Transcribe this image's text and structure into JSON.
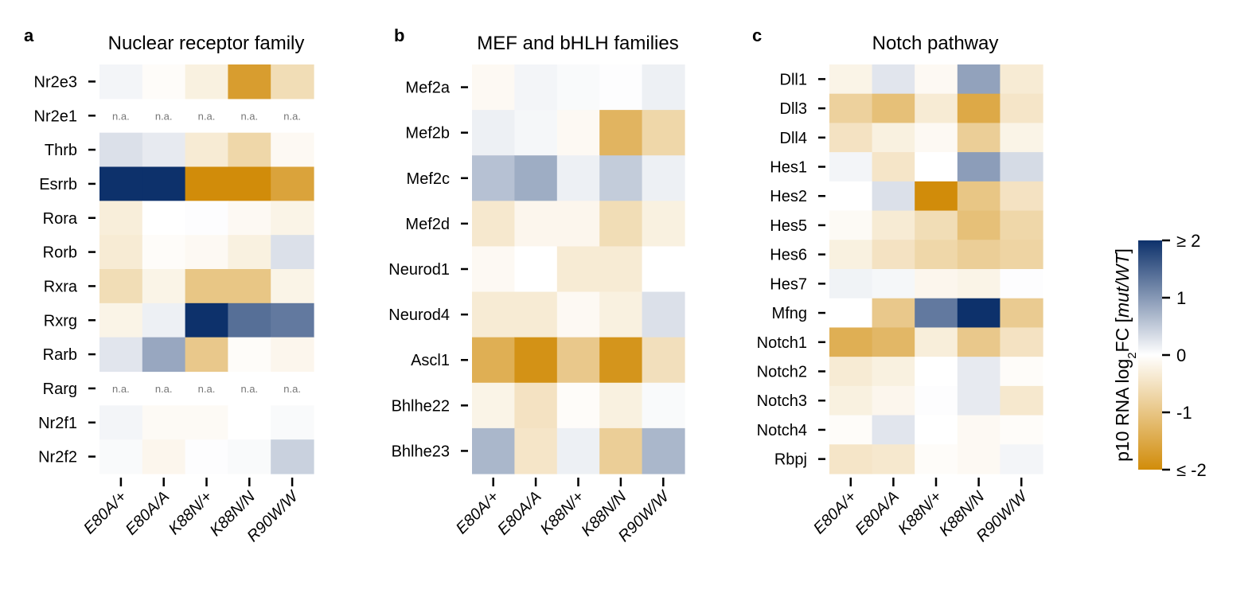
{
  "colorbar": {
    "label_parts": [
      "p10 RNA log",
      "2",
      "FC [",
      "mut/WT",
      "]"
    ],
    "ticks": [
      {
        "value": 2,
        "label": "≥ 2"
      },
      {
        "value": 1,
        "label": "1"
      },
      {
        "value": 0,
        "label": "0"
      },
      {
        "value": -1,
        "label": "-1"
      },
      {
        "value": -2,
        "label": "≤ -2"
      }
    ],
    "colors": {
      "neg": "#D18C0A",
      "mid": "#FFFFFF",
      "pos": "#0D316B"
    },
    "vmin": -2,
    "vmax": 2
  },
  "na_label": "n.a.",
  "chart_data": [
    {
      "type": "heatmap",
      "panel": "a",
      "title": "Nuclear receptor family",
      "rows": [
        "Nr2e3",
        "Nr2e1",
        "Thrb",
        "Esrrb",
        "Rora",
        "Rorb",
        "Rxra",
        "Rxrg",
        "Rarb",
        "Rarg",
        "Nr2f1",
        "Nr2f2"
      ],
      "columns": [
        "E80A/+",
        "E80A/A",
        "K88N/+",
        "K88N/N",
        "R90W/W"
      ],
      "values": [
        [
          0.1,
          -0.05,
          -0.25,
          -1.7,
          -0.6
        ],
        [
          null,
          null,
          null,
          null,
          null
        ],
        [
          0.3,
          0.2,
          -0.35,
          -0.7,
          -0.1
        ],
        [
          2.0,
          2.0,
          -2.0,
          -2.0,
          -1.6
        ],
        [
          -0.3,
          0.0,
          0.02,
          -0.1,
          -0.2
        ],
        [
          -0.35,
          -0.05,
          -0.1,
          -0.25,
          0.3
        ],
        [
          -0.6,
          -0.2,
          -1.0,
          -1.0,
          -0.2
        ],
        [
          -0.2,
          0.15,
          2.0,
          1.4,
          1.3
        ],
        [
          0.25,
          0.85,
          -0.95,
          -0.05,
          -0.15
        ],
        [
          null,
          null,
          null,
          null,
          null
        ],
        [
          0.1,
          -0.08,
          -0.08,
          0.0,
          0.05
        ],
        [
          0.05,
          -0.15,
          0.02,
          0.05,
          0.45
        ]
      ]
    },
    {
      "type": "heatmap",
      "panel": "b",
      "title": "MEF and bHLH families",
      "rows": [
        "Mef2a",
        "Mef2b",
        "Mef2c",
        "Mef2d",
        "Neurod1",
        "Neurod4",
        "Ascl1",
        "Bhlhe22",
        "Bhlhe23"
      ],
      "columns": [
        "E80A/+",
        "E80A/A",
        "K88N/+",
        "K88N/N",
        "R90W/W"
      ],
      "values": [
        [
          -0.1,
          0.1,
          0.05,
          0.02,
          0.15
        ],
        [
          0.15,
          0.08,
          -0.1,
          -1.3,
          -0.7
        ],
        [
          0.6,
          0.8,
          0.15,
          0.5,
          0.15
        ],
        [
          -0.4,
          -0.15,
          -0.15,
          -0.6,
          -0.25
        ],
        [
          -0.1,
          0.0,
          -0.35,
          -0.35,
          0.0
        ],
        [
          -0.35,
          -0.35,
          -0.1,
          -0.25,
          0.3
        ],
        [
          -1.4,
          -1.9,
          -0.95,
          -1.85,
          -0.55
        ],
        [
          -0.2,
          -0.5,
          -0.05,
          -0.25,
          0.05
        ],
        [
          0.7,
          -0.45,
          0.15,
          -0.85,
          0.7
        ]
      ]
    },
    {
      "type": "heatmap",
      "panel": "c",
      "title": "Notch pathway",
      "rows": [
        "Dll1",
        "Dll3",
        "Dll4",
        "Hes1",
        "Hes2",
        "Hes5",
        "Hes6",
        "Hes7",
        "Mfng",
        "Notch1",
        "Notch2",
        "Notch3",
        "Notch4",
        "Rbpj"
      ],
      "columns": [
        "E80A/+",
        "E80A/A",
        "K88N/+",
        "K88N/N",
        "R90W/W"
      ],
      "values": [
        [
          -0.2,
          0.25,
          -0.1,
          0.9,
          -0.35
        ],
        [
          -0.8,
          -1.1,
          -0.35,
          -1.5,
          -0.45
        ],
        [
          -0.5,
          -0.25,
          -0.1,
          -0.85,
          -0.2
        ],
        [
          0.1,
          -0.45,
          0.0,
          0.95,
          0.35
        ],
        [
          0.0,
          0.3,
          -2.0,
          -1.0,
          -0.5
        ],
        [
          -0.08,
          -0.35,
          -0.6,
          -1.1,
          -0.7
        ],
        [
          -0.25,
          -0.5,
          -0.7,
          -0.85,
          -0.75
        ],
        [
          0.12,
          0.08,
          -0.15,
          -0.2,
          0.02
        ],
        [
          0.0,
          -0.95,
          1.3,
          2.0,
          -0.9
        ],
        [
          -1.4,
          -1.25,
          -0.3,
          -0.95,
          -0.5
        ],
        [
          -0.35,
          -0.25,
          0.0,
          0.2,
          -0.05
        ],
        [
          -0.25,
          -0.15,
          0.02,
          0.2,
          -0.4
        ],
        [
          -0.05,
          0.25,
          0.0,
          -0.1,
          -0.05
        ],
        [
          -0.45,
          -0.4,
          -0.05,
          -0.1,
          0.1
        ]
      ]
    }
  ]
}
